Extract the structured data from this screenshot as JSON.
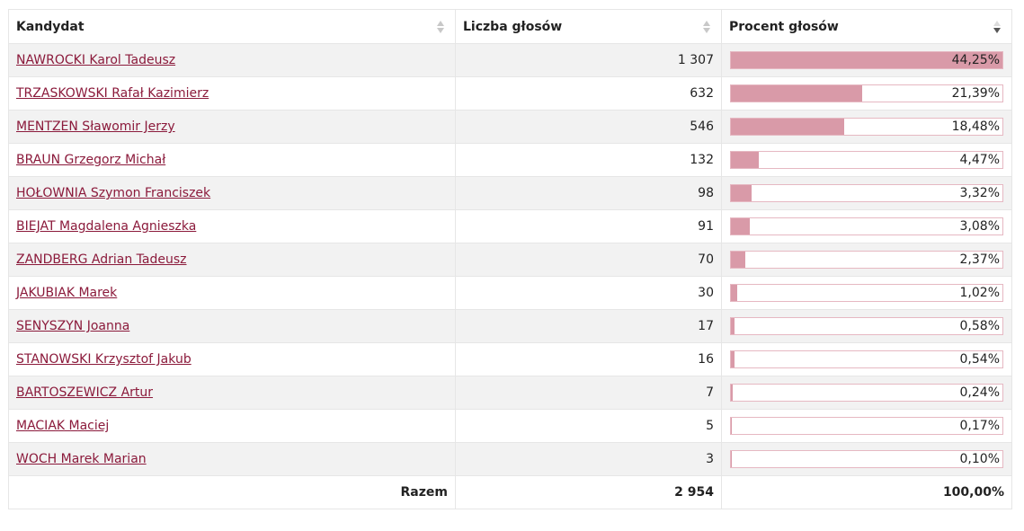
{
  "table": {
    "headers": {
      "candidate": "Kandydat",
      "votes": "Liczba głosów",
      "percent": "Procent głosów"
    },
    "rows": [
      {
        "name": "NAWROCKI Karol Tadeusz",
        "votes": "1 307",
        "percent": "44,25%",
        "share": 44.25
      },
      {
        "name": "TRZASKOWSKI Rafał Kazimierz",
        "votes": "632",
        "percent": "21,39%",
        "share": 21.39
      },
      {
        "name": "MENTZEN Sławomir Jerzy",
        "votes": "546",
        "percent": "18,48%",
        "share": 18.48
      },
      {
        "name": "BRAUN Grzegorz Michał",
        "votes": "132",
        "percent": "4,47%",
        "share": 4.47
      },
      {
        "name": "HOŁOWNIA Szymon Franciszek",
        "votes": "98",
        "percent": "3,32%",
        "share": 3.32
      },
      {
        "name": "BIEJAT Magdalena Agnieszka",
        "votes": "91",
        "percent": "3,08%",
        "share": 3.08
      },
      {
        "name": "ZANDBERG Adrian Tadeusz",
        "votes": "70",
        "percent": "2,37%",
        "share": 2.37
      },
      {
        "name": "JAKUBIAK Marek",
        "votes": "30",
        "percent": "1,02%",
        "share": 1.02
      },
      {
        "name": "SENYSZYN Joanna",
        "votes": "17",
        "percent": "0,58%",
        "share": 0.58
      },
      {
        "name": "STANOWSKI Krzysztof Jakub",
        "votes": "16",
        "percent": "0,54%",
        "share": 0.54
      },
      {
        "name": "BARTOSZEWICZ Artur",
        "votes": "7",
        "percent": "0,24%",
        "share": 0.24
      },
      {
        "name": "MACIAK Maciej",
        "votes": "5",
        "percent": "0,17%",
        "share": 0.17
      },
      {
        "name": "WOCH Marek Marian",
        "votes": "3",
        "percent": "0,10%",
        "share": 0.1
      }
    ],
    "footer": {
      "label": "Razem",
      "votes": "2 954",
      "percent": "100,00%"
    }
  },
  "colors": {
    "link": "#8b1a3b",
    "bar_fill": "#d99aa8",
    "bar_border": "#e6b8c2",
    "row_stripe": "#f2f2f2"
  }
}
